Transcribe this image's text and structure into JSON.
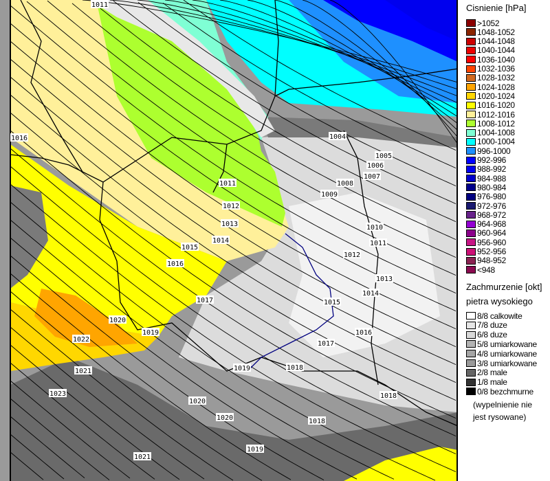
{
  "legend_pressure": {
    "title": "Cisnienie [hPa]",
    "items": [
      {
        "label": ">1052",
        "color": "#8b0000"
      },
      {
        "label": "1048-1052",
        "color": "#8b2500"
      },
      {
        "label": "1044-1048",
        "color": "#cd0000"
      },
      {
        "label": "1040-1044",
        "color": "#ee0000"
      },
      {
        "label": "1036-1040",
        "color": "#ff0000"
      },
      {
        "label": "1032-1036",
        "color": "#ff4500"
      },
      {
        "label": "1028-1032",
        "color": "#d2691e"
      },
      {
        "label": "1024-1028",
        "color": "#ffa500"
      },
      {
        "label": "1020-1024",
        "color": "#ffd700"
      },
      {
        "label": "1016-1020",
        "color": "#ffff00"
      },
      {
        "label": "1012-1016",
        "color": "#fff09a"
      },
      {
        "label": "1008-1012",
        "color": "#adff2f"
      },
      {
        "label": "1004-1008",
        "color": "#7fffd4"
      },
      {
        "label": "1000-1004",
        "color": "#00ffff"
      },
      {
        "label": "996-1000",
        "color": "#1e90ff"
      },
      {
        "label": "992-996",
        "color": "#0000ff"
      },
      {
        "label": "988-992",
        "color": "#0000ee"
      },
      {
        "label": "984-988",
        "color": "#0000cd"
      },
      {
        "label": "980-984",
        "color": "#00008b"
      },
      {
        "label": "976-980",
        "color": "#000080"
      },
      {
        "label": "972-976",
        "color": "#191970"
      },
      {
        "label": "968-972",
        "color": "#68228b"
      },
      {
        "label": "964-968",
        "color": "#9400d3"
      },
      {
        "label": "960-964",
        "color": "#8b008b"
      },
      {
        "label": "956-960",
        "color": "#c71585"
      },
      {
        "label": "952-956",
        "color": "#cd1076"
      },
      {
        "label": "948-952",
        "color": "#8b2252"
      },
      {
        "label": "<948",
        "color": "#8b0a50"
      }
    ]
  },
  "legend_cloud": {
    "title": "Zachmurzenie [okt]",
    "subtitle": "pietra wysokiego",
    "items": [
      {
        "label": "8/8 calkowite",
        "color": "#ffffff"
      },
      {
        "label": "7/8 duze",
        "color": "#e6e6e6"
      },
      {
        "label": "6/8 duze",
        "color": "#d9d9d9"
      },
      {
        "label": "5/8 umiarkowane",
        "color": "#b3b3b3"
      },
      {
        "label": "4/8 umiarkowane",
        "color": "#a6a6a6"
      },
      {
        "label": "3/8 umiarkowane",
        "color": "#999999"
      },
      {
        "label": "2/8 male",
        "color": "#666666"
      },
      {
        "label": "1/8 male",
        "color": "#333333"
      },
      {
        "label": "0/8 bezchmurne",
        "color": "#000000"
      }
    ],
    "note_line1": "(wypelnienie nie",
    "note_line2": "jest rysowane)"
  },
  "isobar_labels": [
    "1011",
    "1016",
    "1004",
    "1005",
    "1006",
    "1007",
    "1008",
    "1009",
    "1011",
    "1012",
    "1013",
    "1014",
    "1015",
    "1016",
    "1010",
    "1011",
    "1012",
    "1013",
    "1014",
    "1015",
    "1016",
    "1017",
    "1017",
    "1018",
    "1019",
    "1018",
    "1018",
    "1020",
    "1019",
    "1022",
    "1021",
    "1023",
    "1020",
    "1020",
    "1019",
    "1021"
  ]
}
